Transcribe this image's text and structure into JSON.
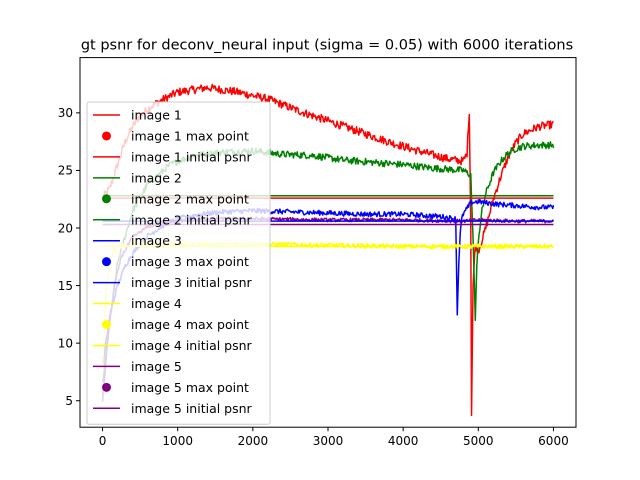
{
  "chart_data": {
    "type": "line",
    "title": "gt psnr for deconv_neural input (sigma = 0.05) with 6000 iterations",
    "xlabel": "",
    "ylabel": "",
    "xlim": [
      -300,
      6300
    ],
    "ylim": [
      2.7,
      34.8
    ],
    "xticks": [
      0,
      1000,
      2000,
      3000,
      4000,
      5000,
      6000
    ],
    "yticks": [
      5,
      10,
      15,
      20,
      25,
      30
    ],
    "grid": false,
    "legend_position": "upper-left",
    "legend": [
      {
        "label": "image 1",
        "kind": "line",
        "color": "#ff0000"
      },
      {
        "label": "image 1 max point",
        "kind": "marker",
        "color": "#ff0000"
      },
      {
        "label": "image 1 initial psnr",
        "kind": "line",
        "color": "#ff0000"
      },
      {
        "label": "image 2",
        "kind": "line",
        "color": "#008000"
      },
      {
        "label": "image 2 max point",
        "kind": "marker",
        "color": "#008000"
      },
      {
        "label": "image 2 initial psnr",
        "kind": "line",
        "color": "#008000"
      },
      {
        "label": "image 3",
        "kind": "line",
        "color": "#0000ff"
      },
      {
        "label": "image 3 max point",
        "kind": "marker",
        "color": "#0000ff"
      },
      {
        "label": "image 3 initial psnr",
        "kind": "line",
        "color": "#0000ff"
      },
      {
        "label": "image 4",
        "kind": "line",
        "color": "#ffff00"
      },
      {
        "label": "image 4 max point",
        "kind": "marker",
        "color": "#ffff00"
      },
      {
        "label": "image 4 initial psnr",
        "kind": "line",
        "color": "#ffff00"
      },
      {
        "label": "image 5",
        "kind": "line",
        "color": "#800080"
      },
      {
        "label": "image 5 max point",
        "kind": "marker",
        "color": "#800080"
      },
      {
        "label": "image 5 initial psnr",
        "kind": "line",
        "color": "#800080"
      }
    ],
    "series": [
      {
        "name": "image 1",
        "color": "#ff0000",
        "initial_psnr": 22.6,
        "noise": 0.35,
        "x": [
          0,
          100,
          200,
          300,
          400,
          500,
          700,
          1000,
          1400,
          1800,
          2200,
          2600,
          3000,
          3400,
          3800,
          4200,
          4600,
          4800,
          4850,
          4880,
          4900,
          4910,
          4930,
          4960,
          5000,
          5100,
          5200,
          5300,
          5400,
          5500,
          5600,
          5800,
          6000
        ],
        "y": [
          22.6,
          23.5,
          25.5,
          27.5,
          28.8,
          29.8,
          30.8,
          31.8,
          32.2,
          31.8,
          31.2,
          30.2,
          29.3,
          28.4,
          27.5,
          26.7,
          26.0,
          25.8,
          26.5,
          30.2,
          20.0,
          4.0,
          15.0,
          18.5,
          18.0,
          20.0,
          22.5,
          24.5,
          26.2,
          27.4,
          28.2,
          28.8,
          29.0
        ]
      },
      {
        "name": "image 2",
        "color": "#008000",
        "initial_psnr": 22.8,
        "noise": 0.3,
        "x": [
          0,
          100,
          200,
          400,
          600,
          900,
          1200,
          1600,
          2000,
          2400,
          2800,
          3200,
          3600,
          4000,
          4400,
          4800,
          4900,
          4940,
          4960,
          4980,
          5000,
          5050,
          5100,
          5200,
          5300,
          5400,
          5500,
          5600,
          5800,
          6000
        ],
        "y": [
          6.5,
          12.0,
          17.0,
          21.5,
          23.8,
          25.5,
          26.3,
          26.6,
          26.7,
          26.4,
          26.3,
          25.9,
          25.7,
          25.5,
          25.2,
          25.0,
          24.6,
          17.0,
          12.0,
          16.5,
          19.0,
          21.5,
          23.0,
          24.8,
          25.8,
          26.5,
          26.9,
          27.1,
          27.2,
          27.2
        ]
      },
      {
        "name": "image 3",
        "color": "#0000ff",
        "initial_psnr": 20.6,
        "noise": 0.22,
        "x": [
          0,
          100,
          200,
          300,
          400,
          500,
          600,
          800,
          1000,
          1300,
          1600,
          2000,
          2500,
          3000,
          3500,
          4000,
          4500,
          4700,
          4720,
          4740,
          4760,
          4780,
          4800,
          4850,
          4900,
          5000,
          5200,
          5400,
          5600,
          5800,
          6000
        ],
        "y": [
          8.0,
          12.5,
          15.0,
          16.7,
          17.8,
          18.6,
          19.3,
          20.2,
          20.8,
          21.2,
          21.4,
          21.5,
          21.4,
          21.3,
          21.2,
          21.2,
          21.0,
          20.8,
          12.5,
          17.0,
          19.5,
          20.8,
          21.2,
          21.7,
          22.2,
          22.3,
          22.1,
          22.0,
          21.9,
          21.8,
          21.8
        ]
      },
      {
        "name": "image 4",
        "color": "#ffff00",
        "initial_psnr": 18.4,
        "noise": 0.2,
        "x": [
          0,
          50,
          100,
          150,
          200,
          300,
          500,
          800,
          1200,
          2000,
          3000,
          4000,
          5000,
          6000
        ],
        "y": [
          8.0,
          14.5,
          17.2,
          18.0,
          18.4,
          18.5,
          18.6,
          18.6,
          18.6,
          18.6,
          18.5,
          18.4,
          18.4,
          18.4
        ]
      },
      {
        "name": "image 5",
        "color": "#800080",
        "initial_psnr": 20.3,
        "noise": 0.15,
        "x": [
          0,
          80,
          160,
          250,
          400,
          600,
          800,
          1000,
          1500,
          2000,
          3000,
          4000,
          4800,
          5000,
          5500,
          6000
        ],
        "y": [
          5.0,
          11.0,
          15.0,
          17.5,
          19.2,
          20.1,
          20.5,
          20.6,
          20.8,
          20.8,
          20.7,
          20.7,
          20.6,
          20.7,
          20.6,
          20.6
        ]
      }
    ]
  }
}
